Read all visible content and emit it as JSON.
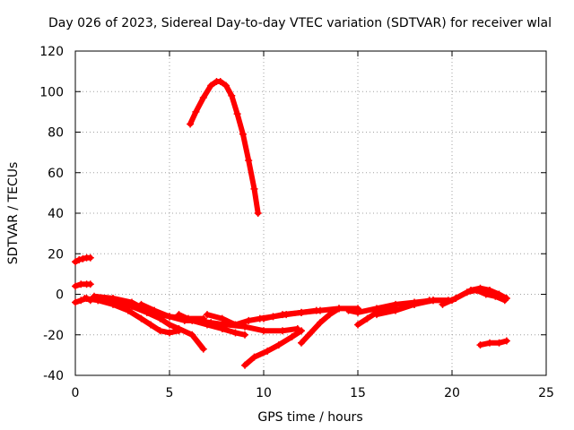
{
  "chart_data": {
    "type": "scatter",
    "title": "Day 026 of 2023, Sidereal Day-to-day VTEC variation (SDTVAR) for receiver wlal",
    "xlabel": "GPS time / hours",
    "ylabel": "SDTVAR / TECUs",
    "xlim": [
      0,
      25
    ],
    "ylim": [
      -40,
      120
    ],
    "xticks": [
      "0",
      "5",
      "10",
      "15",
      "20",
      "25"
    ],
    "yticks": [
      "-40",
      "-20",
      "0",
      "20",
      "40",
      "60",
      "80",
      "100",
      "120"
    ],
    "grid": true,
    "marker": "+",
    "color": "#ff0000",
    "series": [
      {
        "name": "arc-peak",
        "x": [
          6.1,
          6.4,
          6.8,
          7.2,
          7.5,
          7.7,
          8.0,
          8.3,
          8.6,
          8.9,
          9.2,
          9.5,
          9.7
        ],
        "y": [
          84,
          90,
          97,
          103,
          105,
          105,
          103,
          98,
          89,
          79,
          66,
          52,
          40
        ]
      },
      {
        "name": "arc-early-high",
        "x": [
          0.0,
          0.2,
          0.4,
          0.6,
          0.8
        ],
        "y": [
          16,
          17,
          17.5,
          18,
          18
        ]
      },
      {
        "name": "arc-early-mid",
        "x": [
          0.0,
          0.3,
          0.6,
          0.8
        ],
        "y": [
          4,
          5,
          5,
          5
        ]
      },
      {
        "name": "arc-early-low",
        "x": [
          0.0,
          0.3,
          0.6,
          0.8
        ],
        "y": [
          -4,
          -3,
          -2,
          -3
        ]
      },
      {
        "name": "arc-a",
        "x": [
          0.5,
          1.2,
          2.0,
          3.0,
          3.8,
          4.5,
          5.0,
          5.5,
          6.2,
          6.8
        ],
        "y": [
          -2,
          -3,
          -4,
          -6,
          -9,
          -12,
          -15,
          -17,
          -20,
          -27
        ]
      },
      {
        "name": "arc-b",
        "x": [
          1.2,
          2.0,
          2.8,
          3.5,
          4.0,
          4.5,
          5.0,
          5.5
        ],
        "y": [
          -3,
          -5,
          -8,
          -12,
          -15,
          -18,
          -19,
          -18
        ]
      },
      {
        "name": "arc-c",
        "x": [
          1.0,
          2.0,
          3.0,
          4.0,
          5.0,
          6.0,
          6.8
        ],
        "y": [
          -1,
          -2,
          -4,
          -9,
          -11,
          -12,
          -12
        ]
      },
      {
        "name": "arc-d",
        "x": [
          3.5,
          4.2,
          5.0,
          5.8,
          6.5,
          7.2,
          8.0,
          9.0,
          10.0,
          11.0,
          11.8
        ],
        "y": [
          -5,
          -8,
          -11,
          -13,
          -13,
          -14,
          -15,
          -16,
          -18,
          -18,
          -17
        ]
      },
      {
        "name": "arc-e",
        "x": [
          5.5,
          6.2,
          7.0,
          7.8,
          8.5,
          9.0
        ],
        "y": [
          -10,
          -13,
          -15,
          -17,
          -19,
          -20
        ]
      },
      {
        "name": "arc-f",
        "x": [
          7.0,
          7.8,
          8.5,
          9.2,
          9.8,
          10.5,
          11.2,
          12.0,
          12.8
        ],
        "y": [
          -10,
          -12,
          -15,
          -13,
          -12,
          -11,
          -10,
          -9,
          -8
        ]
      },
      {
        "name": "arc-g",
        "x": [
          9.0,
          9.5,
          10.2,
          10.8,
          11.5,
          12.0
        ],
        "y": [
          -35,
          -31,
          -28,
          -25,
          -21,
          -18
        ]
      },
      {
        "name": "arc-h",
        "x": [
          10.0,
          11.0,
          12.0,
          13.0,
          14.0,
          15.0
        ],
        "y": [
          -12,
          -10,
          -9,
          -8,
          -7,
          -7
        ]
      },
      {
        "name": "arc-i",
        "x": [
          12.0,
          12.5,
          13.0,
          13.5,
          14.0
        ],
        "y": [
          -24,
          -19,
          -14,
          -10,
          -7
        ]
      },
      {
        "name": "arc-j",
        "x": [
          14.5,
          15.0,
          16.0,
          17.0,
          18.0,
          19.0,
          19.8
        ],
        "y": [
          -8,
          -9,
          -7,
          -5,
          -4,
          -3,
          -3
        ]
      },
      {
        "name": "arc-k",
        "x": [
          15.0,
          15.5,
          16.0,
          17.0
        ],
        "y": [
          -15,
          -12,
          -9,
          -7
        ]
      },
      {
        "name": "arc-l",
        "x": [
          16.0,
          17.0,
          18.0,
          18.8
        ],
        "y": [
          -10,
          -8,
          -5,
          -3
        ]
      },
      {
        "name": "arc-m",
        "x": [
          18.0,
          19.0,
          20.0,
          20.8,
          21.3,
          21.8,
          22.3,
          22.8
        ],
        "y": [
          -5,
          -3,
          -3,
          1,
          2,
          0,
          -1,
          -3
        ]
      },
      {
        "name": "arc-n",
        "x": [
          19.5,
          20.2,
          21.0,
          21.5,
          22.0,
          22.5,
          22.9
        ],
        "y": [
          -5,
          -2,
          2,
          3,
          2,
          0,
          -2
        ]
      },
      {
        "name": "arc-late-low",
        "x": [
          21.5,
          22.0,
          22.5,
          22.9
        ],
        "y": [
          -25,
          -24,
          -24,
          -23
        ]
      }
    ]
  }
}
